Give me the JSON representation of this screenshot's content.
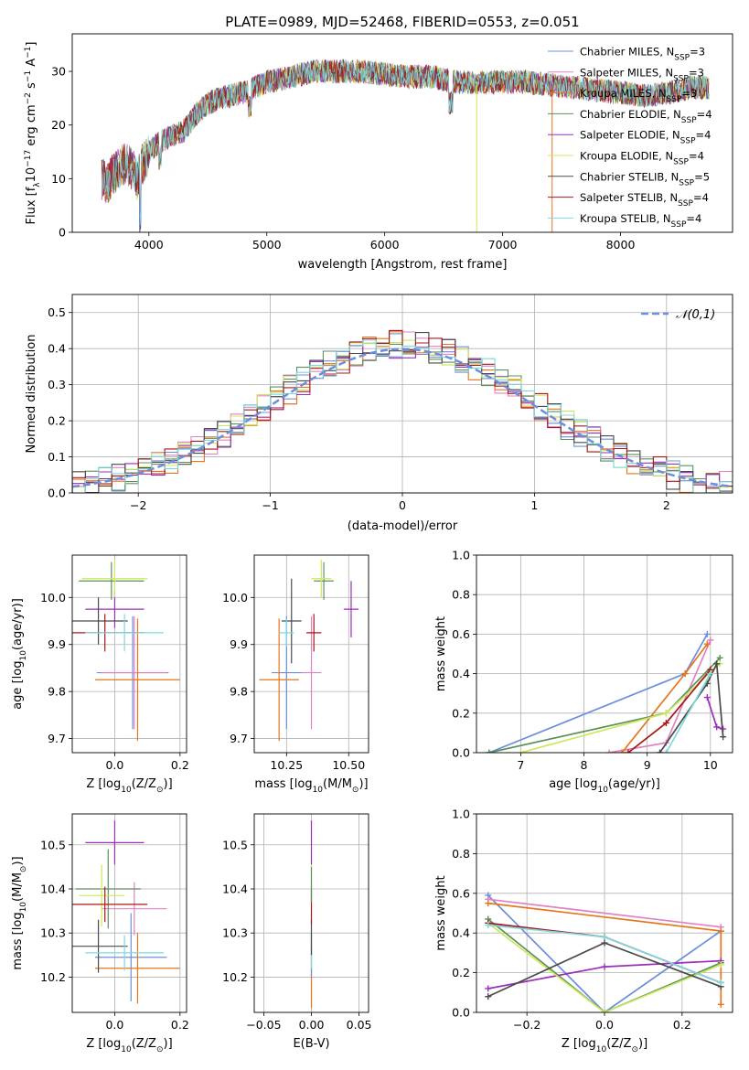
{
  "figure": {
    "title": "PLATE=0989, MJD=52468, FIBERID=0553, z=0.051"
  },
  "series": [
    {
      "label": "Chabrier MILES, N",
      "sub": "SSP",
      "suffix": "=3",
      "color": "#6a8fdc"
    },
    {
      "label": "Salpeter MILES, N",
      "sub": "SSP",
      "suffix": "=3",
      "color": "#e082c1"
    },
    {
      "label": "Kroupa MILES, N",
      "sub": "SSP",
      "suffix": "=3",
      "color": "#e8741c"
    },
    {
      "label": "Chabrier ELODIE, N",
      "sub": "SSP",
      "suffix": "=4",
      "color": "#5c8f5c"
    },
    {
      "label": "Salpeter ELODIE, N",
      "sub": "SSP",
      "suffix": "=4",
      "color": "#9b2fb8"
    },
    {
      "label": "Kroupa ELODIE, N",
      "sub": "SSP",
      "suffix": "=4",
      "color": "#cde85a"
    },
    {
      "label": "Chabrier STELIB, N",
      "sub": "SSP",
      "suffix": "=5",
      "color": "#4a4a4a"
    },
    {
      "label": "Salpeter STELIB, N",
      "sub": "SSP",
      "suffix": "=4",
      "color": "#a81818"
    },
    {
      "label": "Kroupa STELIB, N",
      "sub": "SSP",
      "suffix": "=4",
      "color": "#7fd8e0"
    }
  ],
  "chart_data": [
    {
      "id": "spectrum",
      "type": "line",
      "xlabel": "wavelength [Angstrom, rest frame]",
      "ylabel_parts": [
        "Flux [f",
        "λ",
        "10",
        "−17",
        " erg cm",
        "−2",
        " s",
        "−1",
        " A",
        "−1",
        "]"
      ],
      "xlim": [
        3350,
        8950
      ],
      "ylim": [
        0,
        37
      ],
      "xticks": [
        4000,
        5000,
        6000,
        7000,
        8000
      ],
      "yticks": [
        0,
        10,
        20,
        30
      ],
      "envelope": {
        "x": [
          3600,
          3650,
          3700,
          3750,
          3800,
          3850,
          3900,
          3950,
          4000,
          4100,
          4200,
          4300,
          4400,
          4500,
          4600,
          4800,
          5000,
          5200,
          5400,
          5600,
          5800,
          6000,
          6200,
          6400,
          6600,
          6800,
          7000,
          7200,
          7400,
          7600,
          7800,
          8000,
          8200,
          8400,
          8600,
          8750
        ],
        "y": [
          10,
          9,
          11,
          12,
          13,
          12,
          10,
          13,
          15,
          17,
          18,
          19,
          22,
          24,
          25,
          26,
          28,
          29,
          30,
          30,
          30,
          29.5,
          29,
          29,
          28,
          28,
          28,
          28,
          27.5,
          27,
          26.5,
          26,
          25.5,
          26,
          27,
          27
        ]
      }
    },
    {
      "id": "residuals",
      "type": "histogram",
      "xlabel": "(data-model)/error",
      "ylabel": "Normed distribution",
      "xlim": [
        -2.5,
        2.5
      ],
      "ylim": [
        0,
        0.55
      ],
      "xticks": [
        -2,
        -1,
        0,
        1,
        2
      ],
      "yticks": [
        0.0,
        0.1,
        0.2,
        0.3,
        0.4,
        0.5
      ],
      "reference_curve": {
        "label": "𝒩(0,1)",
        "mean": 0,
        "sigma": 1,
        "color": "#6a8fdc"
      },
      "bin_width": 0.1,
      "bin_start": -2.5
    },
    {
      "id": "age_vs_Z",
      "type": "scatter",
      "xlabel_parts": [
        "Z [log",
        "10",
        "(Z/Z",
        "⊙",
        ")]"
      ],
      "ylabel_parts": [
        "age  [log",
        "10",
        "(age/yr)]"
      ],
      "xlim": [
        -0.13,
        0.22
      ],
      "ylim": [
        9.67,
        10.09
      ],
      "xticks": [
        0.0,
        0.2
      ],
      "yticks": [
        9.7,
        9.8,
        9.9,
        10.0
      ],
      "points": [
        {
          "s": 0,
          "x": 0.055,
          "y": 9.84,
          "xerr": 0.11,
          "yerr": 0.12
        },
        {
          "s": 1,
          "x": 0.06,
          "y": 9.84,
          "xerr": 0.1,
          "yerr": 0.12
        },
        {
          "s": 2,
          "x": 0.07,
          "y": 9.825,
          "xerr": 0.13,
          "yerr": 0.13
        },
        {
          "s": 3,
          "x": -0.01,
          "y": 10.035,
          "xerr": 0.1,
          "yerr": 0.04
        },
        {
          "s": 4,
          "x": 0.0,
          "y": 9.975,
          "xerr": 0.09,
          "yerr": 0.04
        },
        {
          "s": 5,
          "x": 0.0,
          "y": 10.04,
          "xerr": 0.1,
          "yerr": 0.04
        },
        {
          "s": 6,
          "x": -0.05,
          "y": 9.95,
          "xerr": 0.09,
          "yerr": 0.05
        },
        {
          "s": 7,
          "x": -0.03,
          "y": 9.925,
          "xerr": 0.12,
          "yerr": 0.04
        },
        {
          "s": 8,
          "x": 0.03,
          "y": 9.925,
          "xerr": 0.12,
          "yerr": 0.04
        }
      ]
    },
    {
      "id": "age_vs_mass",
      "type": "scatter",
      "xlabel_parts": [
        "mass [log",
        "10",
        "(M/M",
        "⊙",
        ")]"
      ],
      "xlim": [
        10.12,
        10.58
      ],
      "ylim": [
        9.67,
        10.09
      ],
      "xticks": [
        10.25,
        10.5
      ],
      "yticks": [
        9.7,
        9.8,
        9.9,
        10.0
      ],
      "points": [
        {
          "s": 0,
          "x": 10.25,
          "y": 9.84,
          "xerr": 0.06,
          "yerr": 0.12
        },
        {
          "s": 1,
          "x": 10.35,
          "y": 9.84,
          "xerr": 0.04,
          "yerr": 0.12
        },
        {
          "s": 2,
          "x": 10.22,
          "y": 9.825,
          "xerr": 0.08,
          "yerr": 0.13
        },
        {
          "s": 3,
          "x": 10.4,
          "y": 10.035,
          "xerr": 0.04,
          "yerr": 0.04
        },
        {
          "s": 4,
          "x": 10.51,
          "y": 9.975,
          "xerr": 0.03,
          "yerr": 0.06
        },
        {
          "s": 5,
          "x": 10.39,
          "y": 10.04,
          "xerr": 0.04,
          "yerr": 0.04
        },
        {
          "s": 6,
          "x": 10.27,
          "y": 9.95,
          "xerr": 0.04,
          "yerr": 0.09
        },
        {
          "s": 7,
          "x": 10.36,
          "y": 9.925,
          "xerr": 0.03,
          "yerr": 0.04
        },
        {
          "s": 8,
          "x": 10.25,
          "y": 9.925,
          "xerr": 0.03,
          "yerr": 0.03
        }
      ]
    },
    {
      "id": "weight_vs_age",
      "type": "line",
      "xlabel_parts": [
        "age  [log",
        "10",
        "(age/yr)]"
      ],
      "ylabel": "mass weight",
      "xlim": [
        6.3,
        10.35
      ],
      "ylim": [
        0,
        1.0
      ],
      "xticks": [
        7,
        8,
        9,
        10
      ],
      "yticks": [
        0.0,
        0.2,
        0.4,
        0.6,
        0.8,
        1.0
      ],
      "lines": [
        {
          "s": 0,
          "x": [
            6.5,
            9.6,
            9.95
          ],
          "y": [
            0.0,
            0.4,
            0.6
          ]
        },
        {
          "s": 1,
          "x": [
            8.4,
            9.3,
            10.0
          ],
          "y": [
            0.0,
            0.05,
            0.57
          ]
        },
        {
          "s": 2,
          "x": [
            8.6,
            9.6,
            9.95
          ],
          "y": [
            0.0,
            0.4,
            0.55
          ]
        },
        {
          "s": 3,
          "x": [
            6.5,
            9.3,
            10.15
          ],
          "y": [
            0.0,
            0.2,
            0.48
          ]
        },
        {
          "s": 4,
          "x": [
            9.95,
            10.1,
            10.2
          ],
          "y": [
            0.28,
            0.13,
            0.12
          ]
        },
        {
          "s": 5,
          "x": [
            7.0,
            9.3,
            10.15
          ],
          "y": [
            0.0,
            0.2,
            0.45
          ]
        },
        {
          "s": 6,
          "x": [
            9.2,
            9.95,
            10.1,
            10.2
          ],
          "y": [
            0.0,
            0.35,
            0.45,
            0.08
          ]
        },
        {
          "s": 7,
          "x": [
            8.7,
            9.3,
            10.0
          ],
          "y": [
            0.0,
            0.15,
            0.42
          ]
        },
        {
          "s": 8,
          "x": [
            9.3,
            10.0
          ],
          "y": [
            0.0,
            0.4
          ]
        }
      ]
    },
    {
      "id": "mass_vs_Z",
      "type": "scatter",
      "xlabel_parts": [
        "Z [log",
        "10",
        "(Z/Z",
        "⊙",
        ")]"
      ],
      "ylabel_parts": [
        "mass [log",
        "10",
        "(M/M",
        "⊙",
        ")]"
      ],
      "xlim": [
        -0.13,
        0.22
      ],
      "ylim": [
        10.12,
        10.57
      ],
      "xticks": [
        0.0,
        0.2
      ],
      "yticks": [
        10.2,
        10.3,
        10.4,
        10.5
      ],
      "points": [
        {
          "s": 0,
          "x": 0.05,
          "y": 10.245,
          "xerr": 0.11,
          "yerr": 0.1
        },
        {
          "s": 1,
          "x": 0.06,
          "y": 10.355,
          "xerr": 0.1,
          "yerr": 0.06
        },
        {
          "s": 2,
          "x": 0.07,
          "y": 10.22,
          "xerr": 0.13,
          "yerr": 0.08
        },
        {
          "s": 3,
          "x": -0.02,
          "y": 10.4,
          "xerr": 0.1,
          "yerr": 0.09
        },
        {
          "s": 4,
          "x": 0.0,
          "y": 10.505,
          "xerr": 0.09,
          "yerr": 0.05
        },
        {
          "s": 5,
          "x": -0.04,
          "y": 10.385,
          "xerr": 0.07,
          "yerr": 0.07
        },
        {
          "s": 6,
          "x": -0.05,
          "y": 10.27,
          "xerr": 0.09,
          "yerr": 0.06
        },
        {
          "s": 7,
          "x": -0.03,
          "y": 10.365,
          "xerr": 0.13,
          "yerr": 0.04
        },
        {
          "s": 8,
          "x": 0.03,
          "y": 10.255,
          "xerr": 0.12,
          "yerr": 0.04
        }
      ]
    },
    {
      "id": "mass_vs_ebv",
      "type": "scatter",
      "xlabel": "E(B-V)",
      "xlim": [
        -0.06,
        0.06
      ],
      "ylim": [
        10.12,
        10.57
      ],
      "xticks": [
        -0.05,
        0.0,
        0.05
      ],
      "yticks": [
        10.2,
        10.3,
        10.4,
        10.5
      ],
      "points": [
        {
          "s": 2,
          "x": 0.0,
          "y": 10.2,
          "xerr": 0,
          "yerr": 0.07
        },
        {
          "s": 0,
          "x": 0.0,
          "y": 10.25,
          "xerr": 0,
          "yerr": 0.05
        },
        {
          "s": 8,
          "x": 0.0,
          "y": 10.26,
          "xerr": 0,
          "yerr": 0.04
        },
        {
          "s": 6,
          "x": 0.0,
          "y": 10.29,
          "xerr": 0,
          "yerr": 0.04
        },
        {
          "s": 7,
          "x": 0.0,
          "y": 10.36,
          "xerr": 0,
          "yerr": 0.04
        },
        {
          "s": 5,
          "x": 0.0,
          "y": 10.42,
          "xerr": 0,
          "yerr": 0.05
        },
        {
          "s": 3,
          "x": 0.0,
          "y": 10.41,
          "xerr": 0,
          "yerr": 0.04
        },
        {
          "s": 4,
          "x": 0.0,
          "y": 10.505,
          "xerr": 0,
          "yerr": 0.05
        }
      ]
    },
    {
      "id": "weight_vs_Z",
      "type": "line",
      "xlabel_parts": [
        "Z [log",
        "10",
        "(Z/Z",
        "⊙",
        ")]"
      ],
      "ylabel": "mass weight",
      "xlim": [
        -0.33,
        0.33
      ],
      "ylim": [
        0,
        1.0
      ],
      "xticks": [
        -0.2,
        0.0,
        0.2
      ],
      "yticks": [
        0.0,
        0.2,
        0.4,
        0.6,
        0.8,
        1.0
      ],
      "lines": [
        {
          "s": 0,
          "x": [
            -0.3,
            0.0,
            0.3
          ],
          "y": [
            0.59,
            0.0,
            0.41
          ]
        },
        {
          "s": 1,
          "x": [
            -0.3,
            0.3
          ],
          "y": [
            0.57,
            0.43
          ]
        },
        {
          "s": 2,
          "x": [
            -0.3,
            0.3,
            0.3
          ],
          "y": [
            0.55,
            0.41,
            0.04
          ]
        },
        {
          "s": 3,
          "x": [
            -0.3,
            0.0,
            0.3
          ],
          "y": [
            0.47,
            0.0,
            0.25
          ]
        },
        {
          "s": 4,
          "x": [
            -0.3,
            0.0,
            0.3
          ],
          "y": [
            0.12,
            0.23,
            0.26
          ]
        },
        {
          "s": 5,
          "x": [
            -0.3,
            0.0,
            0.3
          ],
          "y": [
            0.45,
            0.0,
            0.24
          ]
        },
        {
          "s": 6,
          "x": [
            -0.3,
            0.0,
            0.3
          ],
          "y": [
            0.08,
            0.35,
            0.13
          ]
        },
        {
          "s": 7,
          "x": [
            -0.3,
            0.0,
            0.3
          ],
          "y": [
            0.45,
            0.38,
            0.15
          ]
        },
        {
          "s": 8,
          "x": [
            -0.3,
            0.0,
            0.3
          ],
          "y": [
            0.44,
            0.38,
            0.15
          ]
        }
      ]
    }
  ]
}
